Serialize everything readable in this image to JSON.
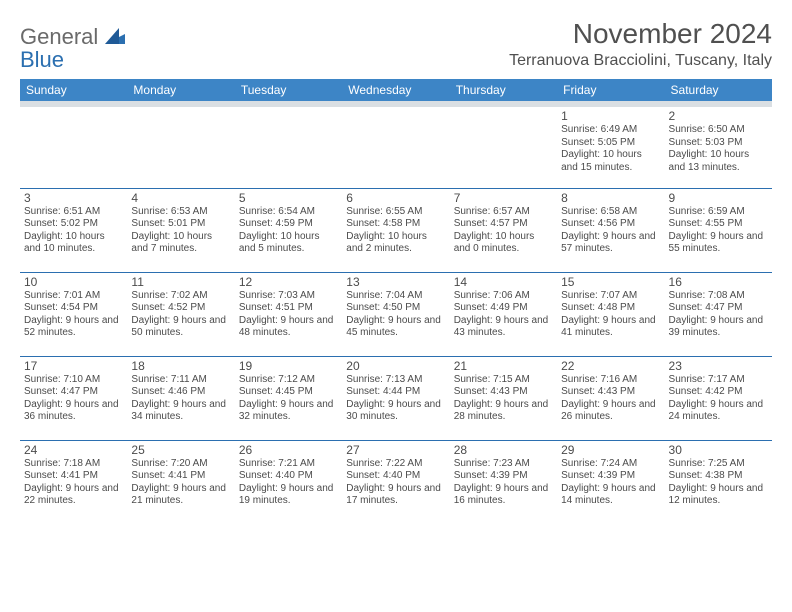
{
  "brand": {
    "line1": "General",
    "line2": "Blue"
  },
  "title": "November 2024",
  "location": "Terranuova Bracciolini, Tuscany, Italy",
  "colors": {
    "header_bg": "#3d85c6",
    "header_text": "#ffffff",
    "divider": "#2b6fb0",
    "subheader_band": "#dadfe3",
    "text": "#4b4b4b",
    "brand_grey": "#6a6a6a",
    "brand_blue": "#2b6fb0"
  },
  "days_of_week": [
    "Sunday",
    "Monday",
    "Tuesday",
    "Wednesday",
    "Thursday",
    "Friday",
    "Saturday"
  ],
  "weeks": [
    [
      null,
      null,
      null,
      null,
      null,
      {
        "n": "1",
        "sunrise": "6:49 AM",
        "sunset": "5:05 PM",
        "daylight": "10 hours and 15 minutes."
      },
      {
        "n": "2",
        "sunrise": "6:50 AM",
        "sunset": "5:03 PM",
        "daylight": "10 hours and 13 minutes."
      }
    ],
    [
      {
        "n": "3",
        "sunrise": "6:51 AM",
        "sunset": "5:02 PM",
        "daylight": "10 hours and 10 minutes."
      },
      {
        "n": "4",
        "sunrise": "6:53 AM",
        "sunset": "5:01 PM",
        "daylight": "10 hours and 7 minutes."
      },
      {
        "n": "5",
        "sunrise": "6:54 AM",
        "sunset": "4:59 PM",
        "daylight": "10 hours and 5 minutes."
      },
      {
        "n": "6",
        "sunrise": "6:55 AM",
        "sunset": "4:58 PM",
        "daylight": "10 hours and 2 minutes."
      },
      {
        "n": "7",
        "sunrise": "6:57 AM",
        "sunset": "4:57 PM",
        "daylight": "10 hours and 0 minutes."
      },
      {
        "n": "8",
        "sunrise": "6:58 AM",
        "sunset": "4:56 PM",
        "daylight": "9 hours and 57 minutes."
      },
      {
        "n": "9",
        "sunrise": "6:59 AM",
        "sunset": "4:55 PM",
        "daylight": "9 hours and 55 minutes."
      }
    ],
    [
      {
        "n": "10",
        "sunrise": "7:01 AM",
        "sunset": "4:54 PM",
        "daylight": "9 hours and 52 minutes."
      },
      {
        "n": "11",
        "sunrise": "7:02 AM",
        "sunset": "4:52 PM",
        "daylight": "9 hours and 50 minutes."
      },
      {
        "n": "12",
        "sunrise": "7:03 AM",
        "sunset": "4:51 PM",
        "daylight": "9 hours and 48 minutes."
      },
      {
        "n": "13",
        "sunrise": "7:04 AM",
        "sunset": "4:50 PM",
        "daylight": "9 hours and 45 minutes."
      },
      {
        "n": "14",
        "sunrise": "7:06 AM",
        "sunset": "4:49 PM",
        "daylight": "9 hours and 43 minutes."
      },
      {
        "n": "15",
        "sunrise": "7:07 AM",
        "sunset": "4:48 PM",
        "daylight": "9 hours and 41 minutes."
      },
      {
        "n": "16",
        "sunrise": "7:08 AM",
        "sunset": "4:47 PM",
        "daylight": "9 hours and 39 minutes."
      }
    ],
    [
      {
        "n": "17",
        "sunrise": "7:10 AM",
        "sunset": "4:47 PM",
        "daylight": "9 hours and 36 minutes."
      },
      {
        "n": "18",
        "sunrise": "7:11 AM",
        "sunset": "4:46 PM",
        "daylight": "9 hours and 34 minutes."
      },
      {
        "n": "19",
        "sunrise": "7:12 AM",
        "sunset": "4:45 PM",
        "daylight": "9 hours and 32 minutes."
      },
      {
        "n": "20",
        "sunrise": "7:13 AM",
        "sunset": "4:44 PM",
        "daylight": "9 hours and 30 minutes."
      },
      {
        "n": "21",
        "sunrise": "7:15 AM",
        "sunset": "4:43 PM",
        "daylight": "9 hours and 28 minutes."
      },
      {
        "n": "22",
        "sunrise": "7:16 AM",
        "sunset": "4:43 PM",
        "daylight": "9 hours and 26 minutes."
      },
      {
        "n": "23",
        "sunrise": "7:17 AM",
        "sunset": "4:42 PM",
        "daylight": "9 hours and 24 minutes."
      }
    ],
    [
      {
        "n": "24",
        "sunrise": "7:18 AM",
        "sunset": "4:41 PM",
        "daylight": "9 hours and 22 minutes."
      },
      {
        "n": "25",
        "sunrise": "7:20 AM",
        "sunset": "4:41 PM",
        "daylight": "9 hours and 21 minutes."
      },
      {
        "n": "26",
        "sunrise": "7:21 AM",
        "sunset": "4:40 PM",
        "daylight": "9 hours and 19 minutes."
      },
      {
        "n": "27",
        "sunrise": "7:22 AM",
        "sunset": "4:40 PM",
        "daylight": "9 hours and 17 minutes."
      },
      {
        "n": "28",
        "sunrise": "7:23 AM",
        "sunset": "4:39 PM",
        "daylight": "9 hours and 16 minutes."
      },
      {
        "n": "29",
        "sunrise": "7:24 AM",
        "sunset": "4:39 PM",
        "daylight": "9 hours and 14 minutes."
      },
      {
        "n": "30",
        "sunrise": "7:25 AM",
        "sunset": "4:38 PM",
        "daylight": "9 hours and 12 minutes."
      }
    ]
  ],
  "labels": {
    "sunrise_prefix": "Sunrise: ",
    "sunset_prefix": "Sunset: ",
    "daylight_prefix": "Daylight: "
  }
}
